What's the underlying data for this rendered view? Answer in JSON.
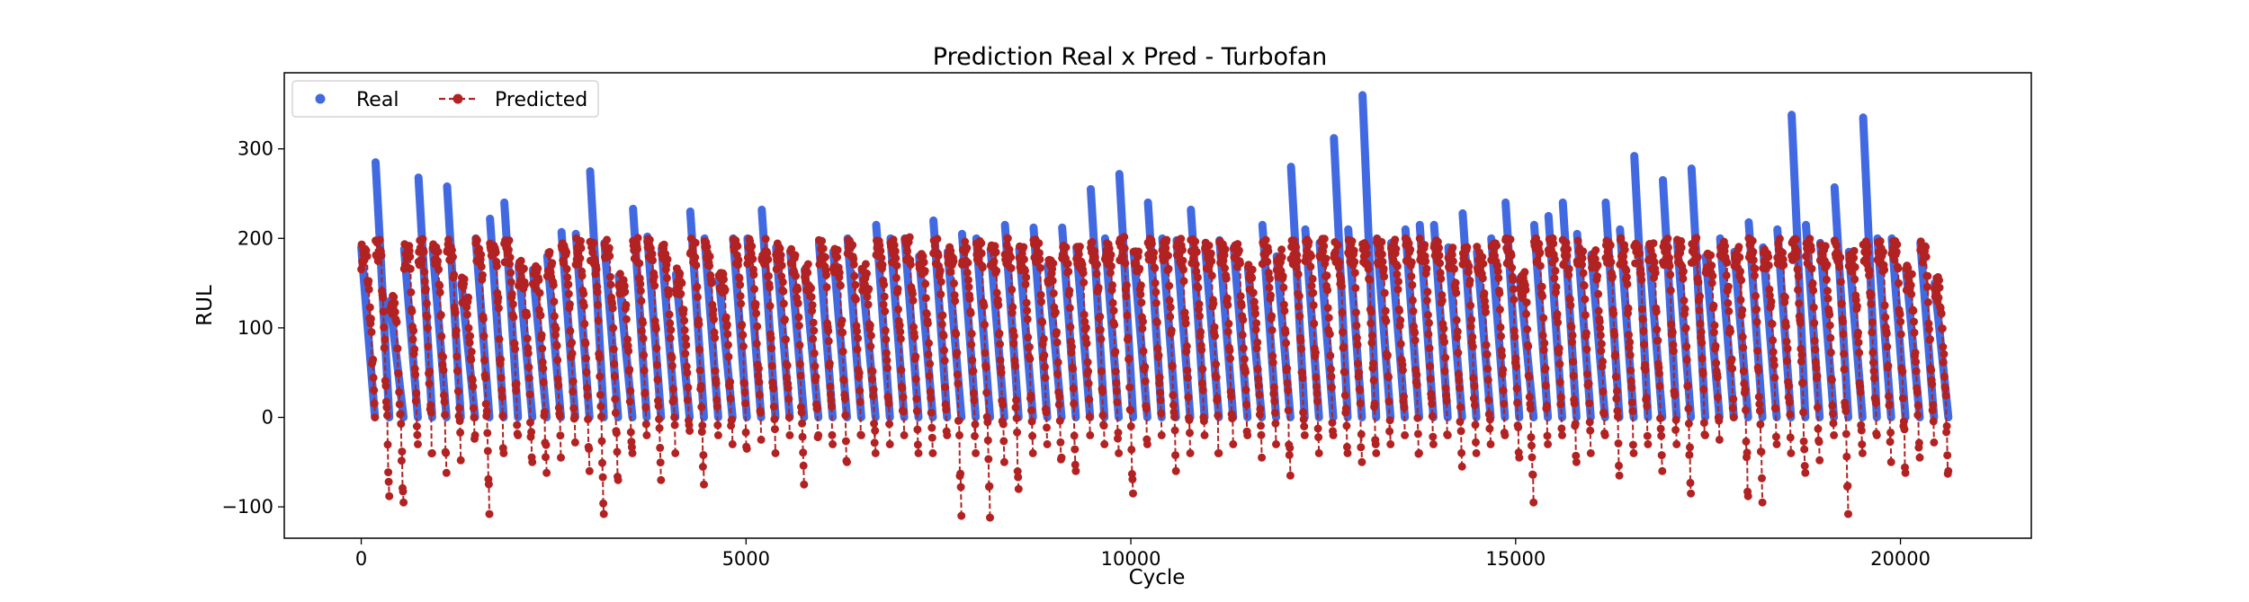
{
  "chart_data": {
    "type": "line",
    "title": "Prediction Real x Pred - Turbofan",
    "xlabel": "Cycle",
    "ylabel": "RUL",
    "xlim": [
      -1000,
      21700
    ],
    "ylim": [
      -135,
      385
    ],
    "xticks": [
      0,
      5000,
      10000,
      15000,
      20000
    ],
    "yticks": [
      -100,
      0,
      100,
      200,
      300
    ],
    "xtick_labels": [
      "0",
      "5000",
      "10000",
      "15000",
      "20000"
    ],
    "ytick_labels": [
      "−100",
      "0",
      "100",
      "200",
      "300"
    ],
    "grid": false,
    "legend": {
      "placement": "top-left",
      "orientation": "horizontal"
    },
    "x_extent": [
      0,
      20630
    ],
    "series": [
      {
        "name": "Real",
        "style": "markers",
        "color": "#4169e1",
        "description": "Per-unit RUL counting linearly down to about 0 at each unit's end of life; unit starting values below",
        "unit_start_values": [
          190,
          285,
          130,
          188,
          268,
          188,
          258,
          150,
          200,
          222,
          240,
          170,
          165,
          180,
          207,
          205,
          275,
          195,
          158,
          233,
          202,
          188,
          160,
          230,
          200,
          155,
          200,
          200,
          232,
          190,
          185,
          165,
          195,
          185,
          200,
          165,
          215,
          200,
          200,
          180,
          220,
          185,
          205,
          200,
          188,
          215,
          188,
          212,
          170,
          212,
          190,
          255,
          200,
          272,
          185,
          240,
          200,
          198,
          232,
          190,
          198,
          190,
          165,
          215,
          180,
          280,
          210,
          195,
          312,
          210,
          360,
          200,
          195,
          210,
          215,
          215,
          190,
          228,
          185,
          200,
          240,
          155,
          215,
          225,
          240,
          205,
          182,
          240,
          210,
          292,
          190,
          265,
          195,
          278,
          180,
          200,
          185,
          218,
          190,
          210,
          338,
          215,
          195,
          257,
          185,
          335,
          200,
          200,
          165,
          195,
          150
        ]
      },
      {
        "name": "Predicted",
        "style": "dashed line with markers",
        "color": "#b22222",
        "description": "Predicted RUL oscillating roughly between -110 and 215, following each unit's degradation trend and undershooting at the end of life; per-unit minimum values below",
        "unit_min_values": [
          0,
          -88,
          -95,
          -30,
          -40,
          -62,
          -48,
          -20,
          -108,
          -40,
          -20,
          -50,
          -62,
          -45,
          -28,
          -60,
          -108,
          -70,
          -40,
          -20,
          -70,
          -40,
          -15,
          -75,
          -20,
          -30,
          -35,
          -25,
          -40,
          -20,
          -75,
          -20,
          -30,
          -50,
          -20,
          -40,
          -30,
          -20,
          -40,
          -40,
          -20,
          -110,
          -40,
          -112,
          -50,
          -80,
          -40,
          -30,
          -45,
          -60,
          -20,
          -30,
          -40,
          -85,
          -30,
          -20,
          -60,
          -40,
          -20,
          -40,
          -30,
          -20,
          -45,
          -30,
          -65,
          -20,
          -40,
          -20,
          -40,
          -50,
          -40,
          -30,
          -20,
          -40,
          -30,
          -20,
          -55,
          -40,
          -30,
          -20,
          -45,
          -95,
          -30,
          -20,
          -50,
          -40,
          -20,
          -65,
          -40,
          -30,
          -60,
          -30,
          -85,
          -20,
          -25
        ]
      }
    ]
  }
}
